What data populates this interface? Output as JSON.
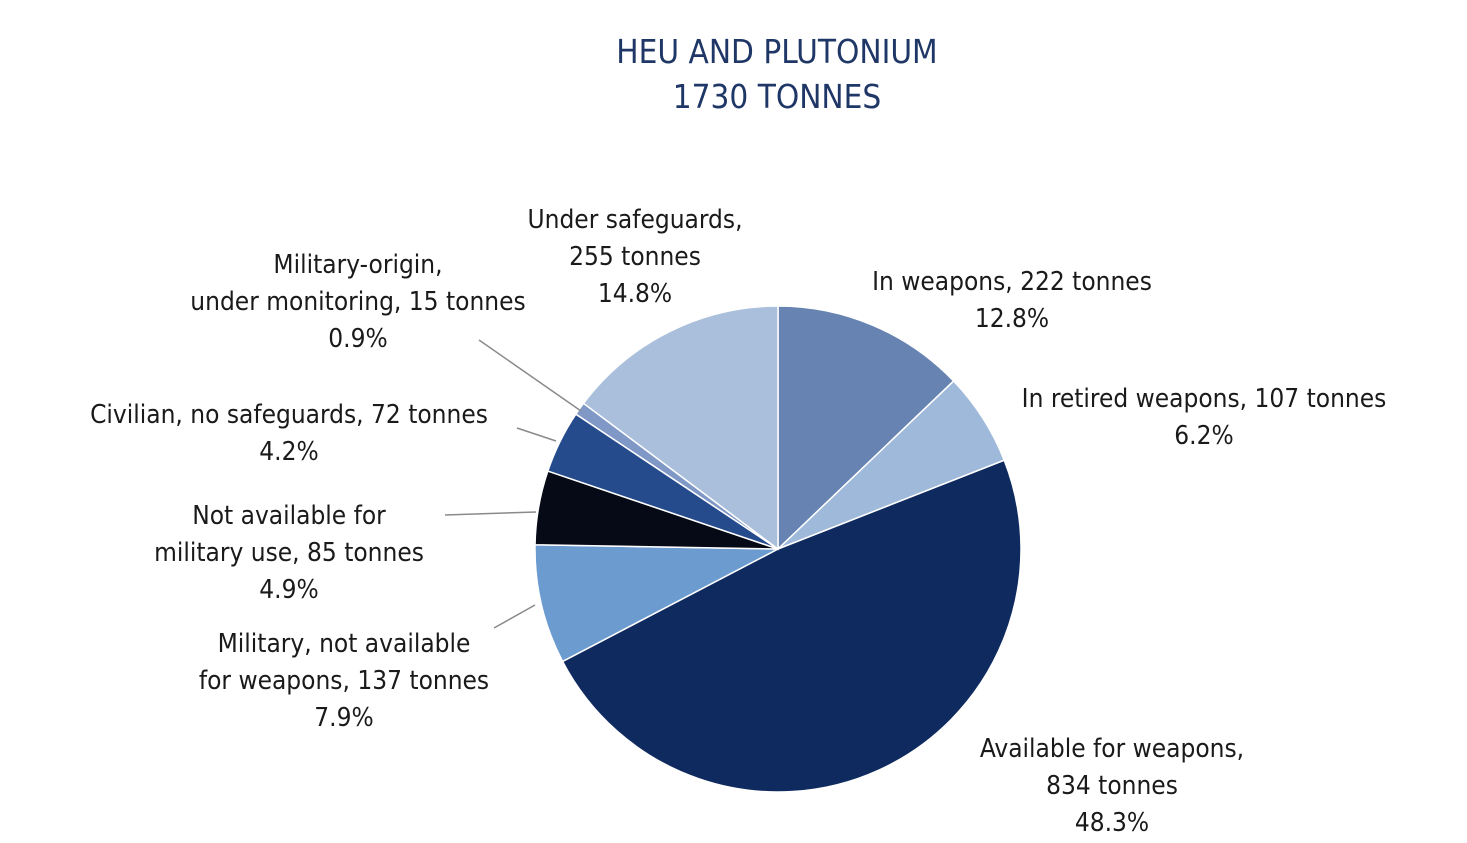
{
  "chart_data": {
    "type": "pie",
    "title": [
      "HEU AND PLUTONIUM",
      "1730 TONNES"
    ],
    "start_angle": "12-o-clock",
    "direction": "clockwise",
    "slices": [
      {
        "label": [
          "In weapons, 222 tonnes",
          "12.8%"
        ],
        "tonnes": 222,
        "percent": 12.8,
        "color": "#6683b2"
      },
      {
        "label": [
          "In retired weapons, 107 tonnes",
          "6.2%"
        ],
        "tonnes": 107,
        "percent": 6.2,
        "color": "#9fb9da"
      },
      {
        "label": [
          "Available for weapons,",
          "834 tonnes",
          "48.3%"
        ],
        "tonnes": 834,
        "percent": 48.3,
        "color": "#0f2a5f"
      },
      {
        "label": [
          "Military, not available",
          "for weapons, 137 tonnes",
          "7.9%"
        ],
        "tonnes": 137,
        "percent": 7.9,
        "color": "#6b9bcf"
      },
      {
        "label": [
          "Not available for",
          "military use, 85 tonnes",
          "4.9%"
        ],
        "tonnes": 85,
        "percent": 4.9,
        "color": "#050a16"
      },
      {
        "label": [
          "Civilian, no safeguards, 72 tonnes",
          "4.2%"
        ],
        "tonnes": 72,
        "percent": 4.2,
        "color": "#264b8c"
      },
      {
        "label": [
          "Military-origin,",
          "under monitoring, 15 tonnes",
          "0.9%"
        ],
        "tonnes": 15,
        "percent": 0.9,
        "color": "#7f98c6"
      },
      {
        "label": [
          "Under safeguards,",
          "255 tonnes",
          "14.8%"
        ],
        "tonnes": 255,
        "percent": 14.8,
        "color": "#aabfdc"
      }
    ]
  }
}
